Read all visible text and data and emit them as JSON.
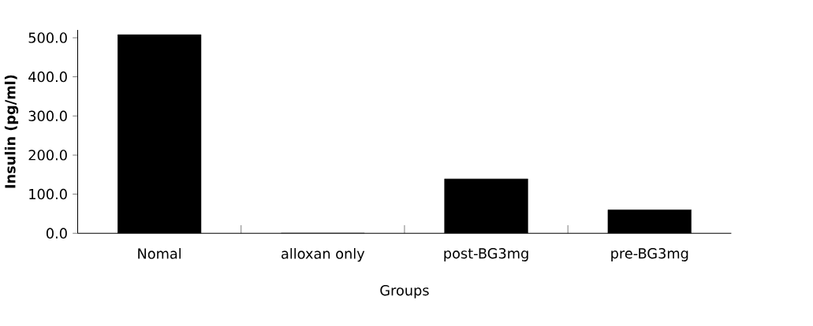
{
  "chart_data": {
    "type": "bar",
    "xlabel": "Groups",
    "ylabel": "Insulin (pg/ml)",
    "categories": [
      "Nomal",
      "alloxan only",
      "post-BG3mg",
      "pre-BG3mg"
    ],
    "values": [
      508,
      0,
      139,
      60
    ],
    "color": "#000000",
    "ylim": [
      0,
      520
    ],
    "yticks": [
      {
        "value": 0,
        "label": "0.0"
      },
      {
        "value": 100,
        "label": "100.0"
      },
      {
        "value": 200,
        "label": "200.0"
      },
      {
        "value": 300,
        "label": "300.0"
      },
      {
        "value": 400,
        "label": "400.0"
      },
      {
        "value": 500,
        "label": "500.0"
      }
    ]
  }
}
